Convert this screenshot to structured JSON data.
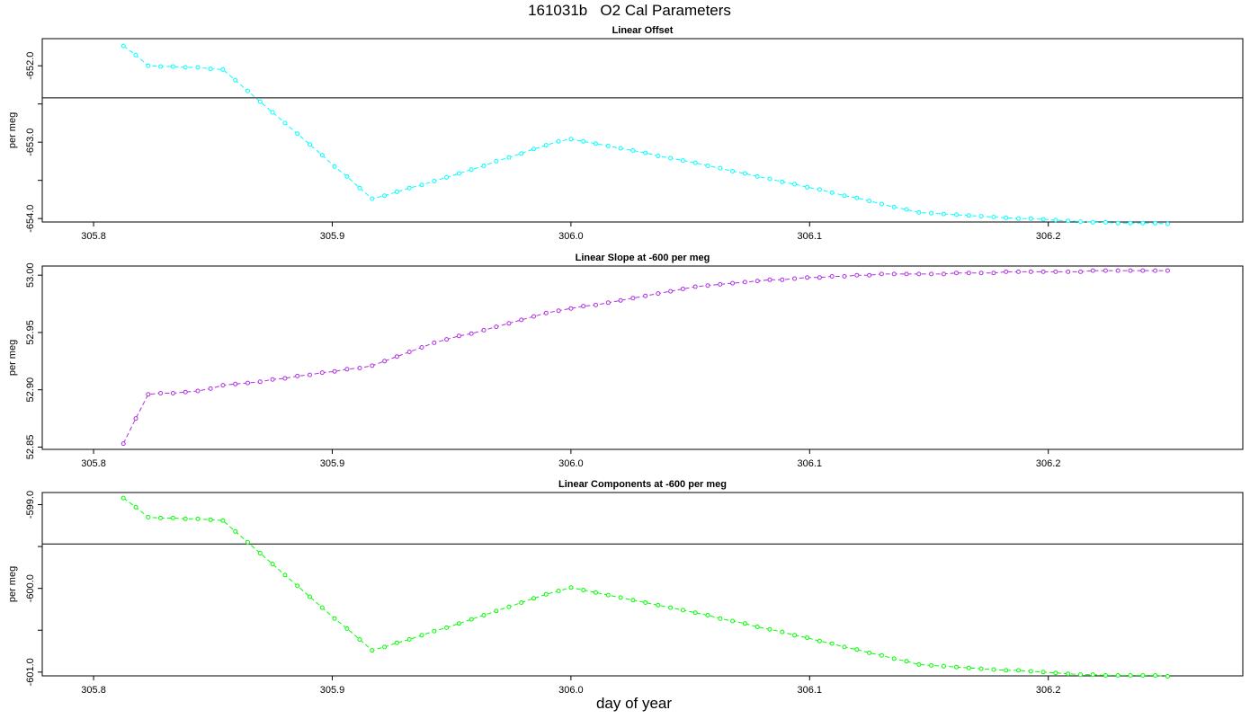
{
  "page_title": "161031b   O2 Cal Parameters",
  "x_axis_label": "day of year",
  "chart_data": [
    {
      "type": "line",
      "title": "Linear Offset",
      "ylabel": "per meg",
      "color": "#00ffff",
      "xlim": [
        305.7785,
        306.2815
      ],
      "ylim": [
        -654.045,
        -651.645
      ],
      "x_ticks": [
        305.8,
        305.9,
        306.0,
        306.1,
        306.2
      ],
      "x_tick_labels": [
        "305.8",
        "305.9",
        "306.0",
        "306.1",
        "306.2"
      ],
      "y_ticks": [
        -652.0,
        -652.5,
        -653.0,
        -653.5,
        -654.0
      ],
      "y_tick_labels": [
        "-652.0",
        "",
        "-653.0",
        "",
        "-654.0"
      ],
      "reference_line": -652.42,
      "x": [
        305.8125,
        305.8177,
        305.8229,
        305.8281,
        305.8333,
        305.8385,
        305.8437,
        305.849,
        305.8542,
        305.8594,
        305.8646,
        305.8698,
        305.875,
        305.8802,
        305.8854,
        305.8906,
        305.8958,
        305.901,
        305.9062,
        305.9115,
        305.9167,
        305.9219,
        305.9271,
        305.9323,
        305.9375,
        305.9427,
        305.9479,
        305.9531,
        305.9583,
        305.9635,
        305.9687,
        305.974,
        305.9792,
        305.9844,
        305.9896,
        305.9948,
        306.0,
        306.0052,
        306.0104,
        306.0156,
        306.0208,
        306.026,
        306.0312,
        306.0365,
        306.0417,
        306.0469,
        306.0521,
        306.0573,
        306.0625,
        306.0677,
        306.0729,
        306.0781,
        306.0833,
        306.0885,
        306.0937,
        306.099,
        306.1042,
        306.1094,
        306.1146,
        306.1198,
        306.125,
        306.1302,
        306.1354,
        306.1406,
        306.1458,
        306.151,
        306.1562,
        306.1615,
        306.1667,
        306.1719,
        306.1771,
        306.1823,
        306.1875,
        306.1927,
        306.1979,
        306.2031,
        306.2083,
        306.2135,
        306.2187,
        306.224,
        306.2292,
        306.2344,
        306.2396,
        306.2448,
        306.25
      ],
      "y": [
        -651.74,
        -651.86,
        -652.0,
        -652.01,
        -652.01,
        -652.02,
        -652.02,
        -652.04,
        -652.05,
        -652.19,
        -652.33,
        -652.47,
        -652.61,
        -652.75,
        -652.89,
        -653.03,
        -653.17,
        -653.32,
        -653.45,
        -653.6,
        -653.74,
        -653.7,
        -653.65,
        -653.6,
        -653.56,
        -653.51,
        -653.46,
        -653.41,
        -653.36,
        -653.31,
        -653.25,
        -653.2,
        -653.15,
        -653.09,
        -653.04,
        -652.99,
        -652.96,
        -652.99,
        -653.02,
        -653.05,
        -653.08,
        -653.11,
        -653.14,
        -653.18,
        -653.21,
        -653.24,
        -653.27,
        -653.31,
        -653.34,
        -653.38,
        -653.41,
        -653.45,
        -653.48,
        -653.52,
        -653.55,
        -653.59,
        -653.62,
        -653.66,
        -653.7,
        -653.73,
        -653.77,
        -653.81,
        -653.85,
        -653.88,
        -653.92,
        -653.93,
        -653.94,
        -653.95,
        -653.96,
        -653.97,
        -653.98,
        -653.99,
        -654.0,
        -654.0,
        -654.01,
        -654.02,
        -654.03,
        -654.04,
        -654.05,
        -654.05,
        -654.06,
        -654.06,
        -654.06,
        -654.06,
        -654.07
      ]
    },
    {
      "type": "line",
      "title": "Linear Slope at -600 per meg",
      "ylabel": "per meg",
      "color": "#b030e0",
      "xlim": [
        305.7785,
        306.2815
      ],
      "ylim": [
        52.848,
        53.008
      ],
      "x_ticks": [
        305.8,
        305.9,
        306.0,
        306.1,
        306.2
      ],
      "x_tick_labels": [
        "305.8",
        "305.9",
        "306.0",
        "306.1",
        "306.2"
      ],
      "y_ticks": [
        52.85,
        52.9,
        52.95,
        53.0
      ],
      "y_tick_labels": [
        "52.85",
        "52.90",
        "52.95",
        "53.00"
      ],
      "x": [
        305.8125,
        305.8177,
        305.8229,
        305.8281,
        305.8333,
        305.8385,
        305.8437,
        305.849,
        305.8542,
        305.8594,
        305.8646,
        305.8698,
        305.875,
        305.8802,
        305.8854,
        305.8906,
        305.8958,
        305.901,
        305.9062,
        305.9115,
        305.9167,
        305.9219,
        305.9271,
        305.9323,
        305.9375,
        305.9427,
        305.9479,
        305.9531,
        305.9583,
        305.9635,
        305.9687,
        305.974,
        305.9792,
        305.9844,
        305.9896,
        305.9948,
        306.0,
        306.0052,
        306.0104,
        306.0156,
        306.0208,
        306.026,
        306.0312,
        306.0365,
        306.0417,
        306.0469,
        306.0521,
        306.0573,
        306.0625,
        306.0677,
        306.0729,
        306.0781,
        306.0833,
        306.0885,
        306.0937,
        306.099,
        306.1042,
        306.1094,
        306.1146,
        306.1198,
        306.125,
        306.1302,
        306.1354,
        306.1406,
        306.1458,
        306.151,
        306.1562,
        306.1615,
        306.1667,
        306.1719,
        306.1771,
        306.1823,
        306.1875,
        306.1927,
        306.1979,
        306.2031,
        306.2083,
        306.2135,
        306.2187,
        306.224,
        306.2292,
        306.2344,
        306.2396,
        306.2448,
        306.25
      ],
      "y": [
        52.853,
        52.875,
        52.896,
        52.897,
        52.897,
        52.898,
        52.899,
        52.901,
        52.904,
        52.905,
        52.906,
        52.907,
        52.909,
        52.91,
        52.912,
        52.913,
        52.915,
        52.916,
        52.918,
        52.919,
        52.921,
        52.925,
        52.929,
        52.933,
        52.937,
        52.941,
        52.944,
        52.947,
        52.949,
        52.952,
        52.955,
        52.958,
        52.961,
        52.964,
        52.967,
        52.969,
        52.971,
        52.973,
        52.974,
        52.976,
        52.978,
        52.98,
        52.982,
        52.984,
        52.986,
        52.988,
        52.99,
        52.991,
        52.992,
        52.993,
        52.994,
        52.995,
        52.996,
        52.996,
        52.997,
        52.998,
        52.998,
        52.999,
        52.999,
        53.0,
        53.0,
        53.001,
        53.001,
        53.001,
        53.001,
        53.001,
        53.001,
        53.002,
        53.002,
        53.002,
        53.002,
        53.003,
        53.003,
        53.003,
        53.003,
        53.003,
        53.003,
        53.003,
        53.004,
        53.004,
        53.004,
        53.004,
        53.004,
        53.004,
        53.004
      ]
    },
    {
      "type": "line",
      "title": "Linear Components at -600 per meg",
      "ylabel": "per meg",
      "color": "#00ff00",
      "xlim": [
        305.7785,
        306.2815
      ],
      "ylim": [
        -601.045,
        -598.855
      ],
      "x_ticks": [
        305.8,
        305.9,
        306.0,
        306.1,
        306.2
      ],
      "x_tick_labels": [
        "305.8",
        "305.9",
        "306.0",
        "306.1",
        "306.2"
      ],
      "y_ticks": [
        -599.0,
        -599.5,
        -600.0,
        -600.5,
        -601.0
      ],
      "y_tick_labels": [
        "-599.0",
        "",
        "-600.0",
        "",
        "-601.0"
      ],
      "reference_line": -599.47,
      "x": [
        305.8125,
        305.8177,
        305.8229,
        305.8281,
        305.8333,
        305.8385,
        305.8437,
        305.849,
        305.8542,
        305.8594,
        305.8646,
        305.8698,
        305.875,
        305.8802,
        305.8854,
        305.8906,
        305.8958,
        305.901,
        305.9062,
        305.9115,
        305.9167,
        305.9219,
        305.9271,
        305.9323,
        305.9375,
        305.9427,
        305.9479,
        305.9531,
        305.9583,
        305.9635,
        305.9687,
        305.974,
        305.9792,
        305.9844,
        305.9896,
        305.9948,
        306.0,
        306.0052,
        306.0104,
        306.0156,
        306.0208,
        306.026,
        306.0312,
        306.0365,
        306.0417,
        306.0469,
        306.0521,
        306.0573,
        306.0625,
        306.0677,
        306.0729,
        306.0781,
        306.0833,
        306.0885,
        306.0937,
        306.099,
        306.1042,
        306.1094,
        306.1146,
        306.1198,
        306.125,
        306.1302,
        306.1354,
        306.1406,
        306.1458,
        306.151,
        306.1562,
        306.1615,
        306.1667,
        306.1719,
        306.1771,
        306.1823,
        306.1875,
        306.1927,
        306.1979,
        306.2031,
        306.2083,
        306.2135,
        306.2187,
        306.224,
        306.2292,
        306.2344,
        306.2396,
        306.2448,
        306.25
      ],
      "y": [
        -598.92,
        -599.03,
        -599.15,
        -599.16,
        -599.16,
        -599.17,
        -599.17,
        -599.18,
        -599.19,
        -599.32,
        -599.45,
        -599.58,
        -599.71,
        -599.84,
        -599.97,
        -600.1,
        -600.23,
        -600.36,
        -600.48,
        -600.61,
        -600.74,
        -600.7,
        -600.65,
        -600.61,
        -600.56,
        -600.51,
        -600.47,
        -600.42,
        -600.37,
        -600.32,
        -600.27,
        -600.22,
        -600.17,
        -600.12,
        -600.07,
        -600.03,
        -599.99,
        -600.02,
        -600.05,
        -600.08,
        -600.11,
        -600.14,
        -600.17,
        -600.2,
        -600.23,
        -600.26,
        -600.29,
        -600.32,
        -600.36,
        -600.39,
        -600.42,
        -600.46,
        -600.49,
        -600.52,
        -600.56,
        -600.59,
        -600.63,
        -600.66,
        -600.7,
        -600.73,
        -600.77,
        -600.8,
        -600.84,
        -600.87,
        -600.91,
        -600.92,
        -600.93,
        -600.94,
        -600.95,
        -600.96,
        -600.97,
        -600.98,
        -600.98,
        -600.99,
        -601.0,
        -601.01,
        -601.02,
        -601.03,
        -601.03,
        -601.04,
        -601.04,
        -601.04,
        -601.04,
        -601.04,
        -601.05
      ]
    }
  ]
}
